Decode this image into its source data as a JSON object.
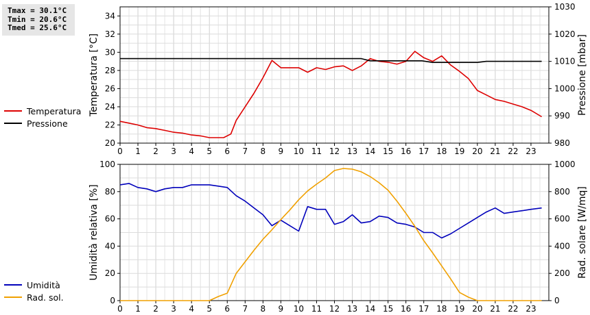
{
  "stats": {
    "tmax": "Tmax = 30.1°C",
    "tmin": "Tmin = 20.6°C",
    "tmed": "Tmed = 25.6°C"
  },
  "legend_top": [
    {
      "label": "Temperatura",
      "color": "#dd0000"
    },
    {
      "label": "Pressione",
      "color": "#000000"
    }
  ],
  "legend_bottom": [
    {
      "label": "Umidità",
      "color": "#0000bb"
    },
    {
      "label": "Rad. sol.",
      "color": "#f0a000"
    }
  ],
  "chart_data": [
    {
      "type": "line",
      "x_range": [
        0,
        24
      ],
      "x_ticks": [
        "0",
        "1",
        "2",
        "3",
        "4",
        "5",
        "6",
        "7",
        "8",
        "9",
        "10",
        "11",
        "12",
        "13",
        "14",
        "15",
        "16",
        "17",
        "18",
        "19",
        "20",
        "21",
        "22",
        "23"
      ],
      "ylabel": "Temperatura [°C]",
      "ylim": [
        20,
        35
      ],
      "y_ticks": [
        "20",
        "22",
        "24",
        "26",
        "28",
        "30",
        "32",
        "34"
      ],
      "y2label": "Pressione [mbar]",
      "y2lim": [
        980,
        1030
      ],
      "y2_ticks": [
        "980",
        "990",
        "1000",
        "1010",
        "1020",
        "1030"
      ],
      "grid": true,
      "series": [
        {
          "name": "Temperatura",
          "axis": "left",
          "color": "#dd0000",
          "x": [
            0,
            0.5,
            1,
            1.5,
            2,
            2.5,
            3,
            3.5,
            4,
            4.5,
            5,
            5.5,
            5.8,
            6.2,
            6.5,
            7,
            7.5,
            8,
            8.5,
            9,
            9.5,
            10,
            10.5,
            11,
            11.5,
            12,
            12.5,
            13,
            13.5,
            14,
            14.5,
            15,
            15.5,
            16,
            16.5,
            17,
            17.5,
            18,
            18.5,
            19,
            19.5,
            20,
            20.5,
            21,
            21.5,
            22,
            22.5,
            23,
            23.6
          ],
          "y": [
            22.4,
            22.2,
            22.0,
            21.7,
            21.6,
            21.4,
            21.2,
            21.1,
            20.9,
            20.8,
            20.6,
            20.6,
            20.6,
            21.0,
            22.5,
            24.0,
            25.5,
            27.2,
            29.1,
            28.3,
            28.3,
            28.3,
            27.8,
            28.3,
            28.1,
            28.4,
            28.5,
            28.0,
            28.5,
            29.3,
            29.0,
            28.9,
            28.7,
            29.0,
            30.1,
            29.4,
            29.0,
            29.6,
            28.6,
            27.9,
            27.1,
            25.8,
            25.3,
            24.8,
            24.6,
            24.3,
            24.0,
            23.6,
            22.9
          ]
        },
        {
          "name": "Pressione",
          "axis": "right",
          "color": "#000000",
          "x": [
            0,
            13.5,
            14,
            16.9,
            17.5,
            18.5,
            20,
            20.5,
            23.6
          ],
          "y": [
            1011,
            1011,
            1010.2,
            1010.2,
            1009.6,
            1009.6,
            1009.6,
            1010,
            1010
          ]
        }
      ]
    },
    {
      "type": "line",
      "x_range": [
        0,
        24
      ],
      "x_ticks": [
        "0",
        "1",
        "2",
        "3",
        "4",
        "5",
        "6",
        "7",
        "8",
        "9",
        "10",
        "11",
        "12",
        "13",
        "14",
        "15",
        "16",
        "17",
        "18",
        "19",
        "20",
        "21",
        "22",
        "23"
      ],
      "ylabel": "Umidità relativa [%]",
      "ylim": [
        0,
        100
      ],
      "y_ticks": [
        "0",
        "20",
        "40",
        "60",
        "80",
        "100"
      ],
      "y2label": "Rad. solare [W/mq]",
      "y2lim": [
        0,
        1000
      ],
      "y2_ticks": [
        "0",
        "200",
        "400",
        "600",
        "800",
        "1000"
      ],
      "grid": true,
      "series": [
        {
          "name": "Umidità",
          "axis": "left",
          "color": "#0000bb",
          "x": [
            0,
            0.5,
            1,
            1.5,
            2,
            2.5,
            3,
            3.5,
            4,
            4.5,
            5,
            5.5,
            6,
            6.5,
            7,
            7.5,
            8,
            8.5,
            9,
            9.5,
            10,
            10.5,
            11,
            11.5,
            12,
            12.5,
            13,
            13.5,
            14,
            14.5,
            15,
            15.5,
            16,
            16.5,
            17,
            17.5,
            18,
            18.5,
            19,
            19.5,
            20,
            20.5,
            21,
            21.5,
            22,
            22.5,
            23,
            23.6
          ],
          "y": [
            85,
            86,
            83,
            82,
            80,
            82,
            83,
            83,
            85,
            85,
            85,
            84,
            83,
            77,
            73,
            68,
            63,
            55,
            59,
            55,
            51,
            69,
            67,
            67,
            56,
            58,
            63,
            57,
            58,
            62,
            61,
            57,
            56,
            54,
            50,
            50,
            46,
            49,
            53,
            57,
            61,
            65,
            68,
            64,
            65,
            66,
            67,
            68
          ]
        },
        {
          "name": "Rad. sol.",
          "axis": "right",
          "color": "#f0a000",
          "x": [
            0,
            5,
            5.5,
            6,
            6.5,
            7,
            7.5,
            8,
            8.5,
            9,
            9.5,
            10,
            10.5,
            11,
            11.5,
            12,
            12.5,
            13,
            13.5,
            14,
            14.5,
            15,
            15.5,
            16,
            16.5,
            17,
            17.5,
            18,
            18.5,
            19,
            19.5,
            20,
            20.5,
            21,
            23.6
          ],
          "y": [
            0,
            0,
            30,
            55,
            200,
            285,
            370,
            450,
            520,
            595,
            665,
            740,
            805,
            855,
            900,
            955,
            970,
            965,
            945,
            910,
            865,
            810,
            730,
            640,
            545,
            440,
            350,
            255,
            160,
            60,
            25,
            0,
            0,
            0,
            0
          ]
        }
      ]
    }
  ]
}
